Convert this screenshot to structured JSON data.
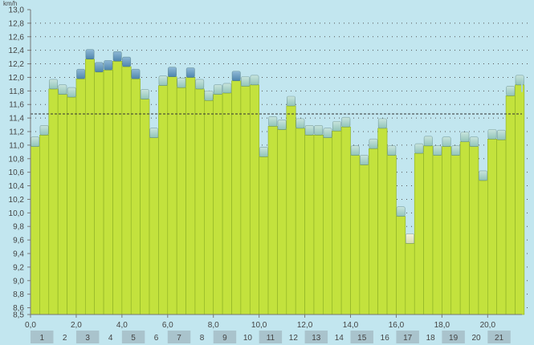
{
  "chart_data": {
    "type": "bar",
    "y_unit": "km/h",
    "ylim": [
      8.5,
      13.0
    ],
    "y_ticks": [
      "8,5",
      "8,6",
      "8,8",
      "9,0",
      "9,2",
      "9,4",
      "9,6",
      "9,8",
      "10,0",
      "10,2",
      "10,4",
      "10,6",
      "10,8",
      "11,0",
      "11,2",
      "11,4",
      "11,6",
      "11,8",
      "12,0",
      "12,2",
      "12,4",
      "12,6",
      "12,8",
      "13,0"
    ],
    "y_tick_values": [
      8.5,
      8.6,
      8.8,
      9.0,
      9.2,
      9.4,
      9.6,
      9.8,
      10.0,
      10.2,
      10.4,
      10.6,
      10.8,
      11.0,
      11.2,
      11.4,
      11.6,
      11.8,
      12.0,
      12.2,
      12.4,
      12.6,
      12.8,
      13.0
    ],
    "xlim": [
      0.0,
      21.5
    ],
    "x_ticks": [
      "0,0",
      "2,0",
      "4,0",
      "6,0",
      "8,0",
      "10,0",
      "12,0",
      "14,0",
      "16,0",
      "18,0",
      "20,0"
    ],
    "x_tick_values": [
      0,
      2,
      4,
      6,
      8,
      10,
      12,
      14,
      16,
      18,
      20
    ],
    "km_labels": [
      "1",
      "2",
      "3",
      "4",
      "5",
      "6",
      "7",
      "8",
      "9",
      "10",
      "11",
      "12",
      "13",
      "14",
      "15",
      "16",
      "17",
      "18",
      "19",
      "20",
      "21"
    ],
    "average": 11.46,
    "bar_width_km": 0.4,
    "values": [
      11.05,
      11.22,
      11.9,
      11.82,
      11.78,
      12.05,
      12.34,
      12.15,
      12.18,
      12.31,
      12.23,
      12.05,
      11.75,
      11.18,
      11.95,
      12.08,
      11.92,
      12.07,
      11.9,
      11.73,
      11.82,
      11.84,
      12.02,
      11.94,
      11.96,
      10.9,
      11.35,
      11.3,
      11.65,
      11.32,
      11.22,
      11.22,
      11.18,
      11.28,
      11.34,
      10.92,
      10.78,
      11.02,
      11.32,
      10.92,
      10.02,
      9.62,
      10.95,
      11.06,
      10.92,
      11.05,
      10.92,
      11.12,
      11.05,
      10.55,
      11.16,
      11.15,
      11.8,
      11.96
    ],
    "colors": {
      "bar_fill": "#c3e23d",
      "bar_stroke": "#8aae24",
      "cap_light_top": "#c8e4dd",
      "cap_light_bottom": "#92c4b8",
      "cap_dark_top": "#8fb9d6",
      "cap_dark_bottom": "#4e85ad",
      "cap_pale_top": "#f2f2de",
      "cap_pale_bottom": "#d6dcb4",
      "background": "#c2e6ef",
      "grid": "#555555",
      "km_band": "#a9c3cc"
    }
  }
}
